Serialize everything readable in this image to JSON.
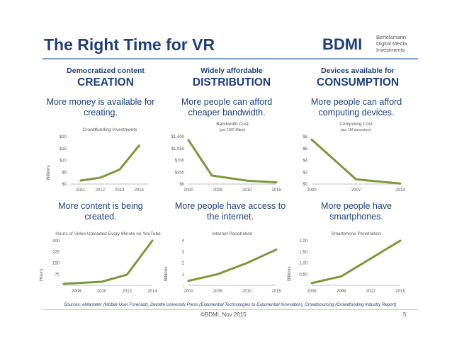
{
  "slide": {
    "title": "The Right Time for VR",
    "logo": {
      "mark": "BDMI",
      "line1": "Bertelsmann",
      "line2": "Digital Media",
      "line3": "Investments",
      "color": "#1f3f7a"
    },
    "footer": {
      "sources": "Sources: eMarketer (Mobile User Forecast), Deloitte University Press (Exponential Technologies to Exponential Innovation), Crowdsourcing (Crowdfunding Industry Report)",
      "copyright": "©BDMI, Nov 2015",
      "page": "5"
    }
  },
  "columns": [
    {
      "sub": "Democratized content",
      "big": "CREATION",
      "top_caption": "More money is available for creating.",
      "bottom_caption": "More content is being created."
    },
    {
      "sub": "Widely affordable",
      "big": "DISTRIBUTION",
      "top_caption": "More people can afford cheaper bandwidth.",
      "bottom_caption": "More people have access to the internet."
    },
    {
      "sub": "Devices available for",
      "big": "CONSUMPTION",
      "top_caption": "More people can afford computing devices.",
      "bottom_caption": "More people have smartphones."
    }
  ],
  "chart_data": [
    {
      "type": "line",
      "title": "Crowdfunding Investments",
      "subtitle": "",
      "ylabel": "Billions",
      "x": [
        "2011",
        "2012",
        "2013",
        "2014"
      ],
      "values": [
        1.5,
        2.7,
        6.1,
        16.2
      ],
      "ylim": [
        0,
        20
      ],
      "yticks": [
        "$0",
        "$5",
        "$10",
        "$15",
        "$20"
      ],
      "xticks": [
        "2011",
        "2012",
        "2013",
        "2014"
      ]
    },
    {
      "type": "line",
      "title": "Bandwidth Cost",
      "subtitle": "(per 1000 Mbps)",
      "ylabel": "",
      "x": [
        2000,
        2004,
        2010,
        2015
      ],
      "values": [
        1300,
        250,
        100,
        50
      ],
      "ylim": [
        0,
        1400
      ],
      "yticks": [
        "$0",
        "$350",
        "$700",
        "$1,050",
        "$1,400"
      ],
      "xticks": [
        "2000",
        "2005",
        "2010",
        "2015"
      ],
      "xrange": [
        2000,
        2015
      ]
    },
    {
      "type": "line",
      "title": "Computing Cost",
      "subtitle": "(per 1M transistors)",
      "ylabel": "",
      "x": [
        2000,
        2007,
        2014
      ],
      "values": [
        7.5,
        0.8,
        0.1
      ],
      "ylim": [
        0,
        8
      ],
      "yticks": [
        "$0",
        "$2",
        "$4",
        "$6",
        "$8"
      ],
      "xticks": [
        "2000",
        "2007",
        "2014"
      ],
      "xrange": [
        2000,
        2014
      ]
    },
    {
      "type": "line",
      "title": "Hours of Video Uploaded Every Minute on YouTube",
      "subtitle": "",
      "ylabel": "Hours",
      "x": [
        2007,
        2010,
        2012,
        2014
      ],
      "values": [
        10,
        24,
        72,
        300
      ],
      "ylim": [
        0,
        300
      ],
      "yticks": [
        "-",
        "75",
        "150",
        "225",
        "300"
      ],
      "xticks": [
        "2008",
        "2010",
        "2012",
        "2014"
      ],
      "xrange": [
        2007,
        2014
      ],
      "xtickvals": [
        2008,
        2010,
        2012,
        2014
      ]
    },
    {
      "type": "line",
      "title": "Internet Penetration",
      "subtitle": "",
      "ylabel": "Billions",
      "x": [
        2000,
        2005,
        2010,
        2015
      ],
      "values": [
        0.4,
        1.0,
        2.0,
        3.2
      ],
      "ylim": [
        0,
        4
      ],
      "yticks": [
        "-",
        "1",
        "2",
        "3",
        "4"
      ],
      "xticks": [
        "2000",
        "2005",
        "2010",
        "2015"
      ],
      "xrange": [
        2000,
        2015
      ]
    },
    {
      "type": "line",
      "title": "Smartphone Penetration",
      "subtitle": "",
      "ylabel": "Billions",
      "x": [
        2006,
        2009,
        2012,
        2015
      ],
      "values": [
        0.1,
        0.4,
        1.2,
        2.0
      ],
      "ylim": [
        0,
        2
      ],
      "yticks": [
        "-",
        "0.50",
        "1.00",
        "1.50",
        "2.00"
      ],
      "xticks": [
        "2006",
        "2009",
        "2012",
        "2015"
      ],
      "xrange": [
        2006,
        2015
      ]
    }
  ],
  "style": {
    "line_color": "#7a9a3a",
    "axis_color": "#bfbfbf",
    "text_color": "#595959"
  }
}
